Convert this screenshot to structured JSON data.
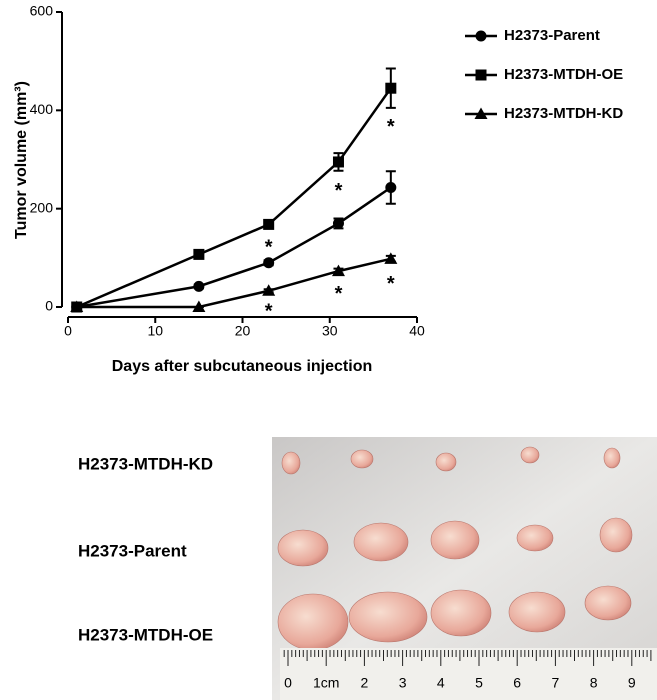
{
  "chart_data": {
    "type": "line",
    "x_label": "Days after subcutaneous injection",
    "y_label": "Tumor volume (mm³)",
    "x": [
      1,
      15,
      23,
      31,
      37
    ],
    "series": [
      {
        "name": "H2373-Parent",
        "color": "#000000",
        "marker": "circle",
        "values": [
          0,
          42,
          90,
          170,
          243
        ],
        "errors": [
          0,
          4,
          5,
          10,
          33
        ]
      },
      {
        "name": "H2373-MTDH-OE",
        "color": "#000000",
        "marker": "square",
        "values": [
          0,
          107,
          168,
          295,
          445
        ],
        "errors": [
          0,
          5,
          6,
          18,
          40
        ]
      },
      {
        "name": "H2373-MTDH-KD",
        "color": "#000000",
        "marker": "triangle",
        "values": [
          0,
          0,
          33,
          73,
          98
        ],
        "errors": [
          0,
          0,
          3,
          5,
          6
        ]
      }
    ],
    "annotations": [
      {
        "text": "*",
        "x": 23,
        "y": 130
      },
      {
        "text": "*",
        "x": 31,
        "y": 245
      },
      {
        "text": "*",
        "x": 37,
        "y": 375
      },
      {
        "text": "*",
        "x": 23,
        "y": 0
      },
      {
        "text": "*",
        "x": 31,
        "y": 35
      },
      {
        "text": "*",
        "x": 37,
        "y": 55
      }
    ],
    "xlim": [
      0,
      40
    ],
    "xticks": [
      0,
      10,
      20,
      30,
      40
    ],
    "ylim": [
      0,
      600
    ],
    "yticks": [
      0,
      200,
      400,
      600
    ]
  },
  "photo": {
    "row_labels": [
      "H2373-MTDH-KD",
      "H2373-Parent",
      "H2373-MTDH-OE"
    ],
    "ruler_labels": [
      "0",
      "1cm",
      "2",
      "3",
      "4",
      "5",
      "6",
      "7",
      "8",
      "9"
    ]
  }
}
